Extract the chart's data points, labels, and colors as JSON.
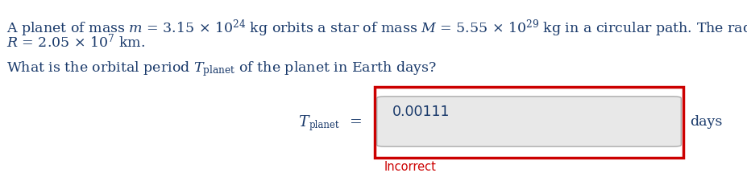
{
  "bg_color": "#ffffff",
  "text_color": "#1a3a6b",
  "incorrect_color": "#cc0000",
  "input_box_fill": "#e8e8e8",
  "input_box_border": "#aaaaaa",
  "outer_box_border": "#cc0000",
  "answer_value": "0.00111",
  "incorrect_text": "Incorrect",
  "units": "days",
  "figsize": [
    9.28,
    2.15
  ],
  "dpi": 100
}
